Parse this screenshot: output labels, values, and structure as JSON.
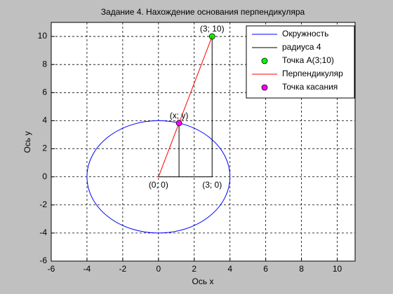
{
  "chart_data": {
    "type": "line",
    "title": "Задание 4. Нахождение основания перпендикуляра",
    "xlabel": "Ось x",
    "ylabel": "Ось y",
    "xlim": [
      -6,
      11
    ],
    "ylim": [
      -6,
      11
    ],
    "xticks": [
      -6,
      -4,
      -2,
      0,
      2,
      4,
      6,
      8,
      10
    ],
    "yticks": [
      -6,
      -4,
      -2,
      0,
      2,
      4,
      6,
      8,
      10
    ],
    "grid": true,
    "legend": "upper right",
    "series": [
      {
        "name": "Окружность",
        "color": "#0000ff",
        "center": [
          0,
          0
        ],
        "radius": 4
      },
      {
        "name": "радиуса 4",
        "color": "#000000",
        "x": [
          1.149,
          1.149,
          null,
          3,
          3,
          null,
          0,
          3
        ],
        "y": [
          0,
          3.831,
          null,
          0,
          10,
          null,
          0,
          0
        ]
      },
      {
        "name": "Точка A(3;10)",
        "color": "#00ff00",
        "marker": "o",
        "x": [
          3
        ],
        "y": [
          10
        ]
      },
      {
        "name": "Перпендикуляр",
        "color": "#ff0000",
        "x": [
          0,
          3
        ],
        "y": [
          0,
          10
        ]
      },
      {
        "name": "Точка касания",
        "color": "#ff00ff",
        "marker": "o",
        "x": [
          1.149
        ],
        "y": [
          3.831
        ]
      }
    ],
    "annotations": [
      {
        "text": "(3; 10)",
        "x": 3,
        "y": 10
      },
      {
        "text": "(x; y)",
        "x": 1.149,
        "y": 3.831
      },
      {
        "text": "(0; 0)",
        "x": 0,
        "y": 0
      },
      {
        "text": "(3; 0)",
        "x": 3,
        "y": 0
      }
    ]
  }
}
